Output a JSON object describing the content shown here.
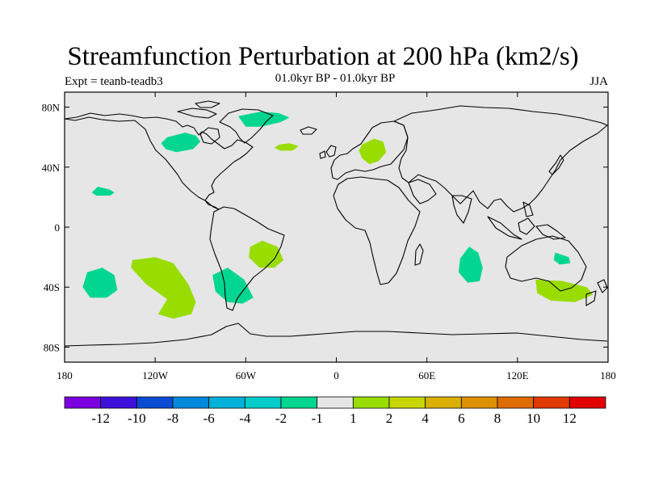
{
  "title": "Streamfunction Perturbation at 200 hPa (km2/s)",
  "left_label": "Expt = teanb-teadb3",
  "center_label": "01.0kyr BP - 01.0kyr BP",
  "right_label": "JJA",
  "map": {
    "projection": "cylindrical-equidistant",
    "lon_range": [
      -180,
      180
    ],
    "lat_range": [
      -90,
      90
    ],
    "background_color": "#e6e6e6",
    "lon_ticks": [
      {
        "value": -180,
        "label": "180"
      },
      {
        "value": -120,
        "label": "120W"
      },
      {
        "value": -60,
        "label": "60W"
      },
      {
        "value": 0,
        "label": "0"
      },
      {
        "value": 60,
        "label": "60E"
      },
      {
        "value": 120,
        "label": "120E"
      },
      {
        "value": 180,
        "label": "180"
      }
    ],
    "lat_ticks": [
      {
        "value": 80,
        "label": "80N"
      },
      {
        "value": 40,
        "label": "40N"
      },
      {
        "value": 0,
        "label": "0"
      },
      {
        "value": -40,
        "label": "40S"
      },
      {
        "value": -80,
        "label": "80S"
      }
    ],
    "anomaly_regions": [
      {
        "name": "north-pacific-small",
        "color": "#00d68f",
        "points": [
          [
            -158,
            27
          ],
          [
            -150,
            25
          ],
          [
            -147,
            23
          ],
          [
            -150,
            21
          ],
          [
            -159,
            21
          ],
          [
            -162,
            23
          ]
        ]
      },
      {
        "name": "canada",
        "color": "#00d68f",
        "points": [
          [
            -112,
            60
          ],
          [
            -100,
            63
          ],
          [
            -93,
            61
          ],
          [
            -90,
            57
          ],
          [
            -95,
            52
          ],
          [
            -106,
            50
          ],
          [
            -113,
            52
          ],
          [
            -116,
            56
          ]
        ]
      },
      {
        "name": "greenland",
        "color": "#00d68f",
        "points": [
          [
            -65,
            74
          ],
          [
            -50,
            77
          ],
          [
            -38,
            76
          ],
          [
            -31,
            73
          ],
          [
            -37,
            70
          ],
          [
            -50,
            67
          ],
          [
            -60,
            67
          ]
        ]
      },
      {
        "name": "north-atlantic",
        "color": "#99dc00",
        "points": [
          [
            -38,
            55
          ],
          [
            -31,
            56
          ],
          [
            -25,
            54
          ],
          [
            -29,
            51
          ],
          [
            -37,
            51
          ],
          [
            -41,
            53
          ]
        ]
      },
      {
        "name": "eastern-europe",
        "color": "#99dc00",
        "points": [
          [
            17,
            55
          ],
          [
            25,
            59
          ],
          [
            31,
            57
          ],
          [
            33,
            50
          ],
          [
            28,
            44
          ],
          [
            22,
            42
          ],
          [
            17,
            46
          ],
          [
            15,
            51
          ]
        ]
      },
      {
        "name": "south-pacific-west",
        "color": "#00d68f",
        "points": [
          [
            -165,
            -30
          ],
          [
            -155,
            -27
          ],
          [
            -147,
            -32
          ],
          [
            -145,
            -42
          ],
          [
            -152,
            -47
          ],
          [
            -163,
            -47
          ],
          [
            -168,
            -40
          ]
        ]
      },
      {
        "name": "south-pacific-band",
        "color": "#99dc00",
        "points": [
          [
            -135,
            -22
          ],
          [
            -120,
            -20
          ],
          [
            -108,
            -24
          ],
          [
            -98,
            -38
          ],
          [
            -93,
            -50
          ],
          [
            -96,
            -58
          ],
          [
            -108,
            -61
          ],
          [
            -118,
            -58
          ],
          [
            -112,
            -48
          ],
          [
            -126,
            -38
          ],
          [
            -136,
            -27
          ]
        ]
      },
      {
        "name": "south-america",
        "color": "#00d68f",
        "points": [
          [
            -82,
            -32
          ],
          [
            -72,
            -27
          ],
          [
            -61,
            -35
          ],
          [
            -55,
            -47
          ],
          [
            -62,
            -51
          ],
          [
            -72,
            -50
          ],
          [
            -80,
            -43
          ]
        ]
      },
      {
        "name": "south-atlantic",
        "color": "#99dc00",
        "points": [
          [
            -57,
            -13
          ],
          [
            -49,
            -9
          ],
          [
            -39,
            -13
          ],
          [
            -35,
            -22
          ],
          [
            -41,
            -27
          ],
          [
            -51,
            -27
          ],
          [
            -58,
            -20
          ]
        ]
      },
      {
        "name": "indian-ocean",
        "color": "#00d68f",
        "points": [
          [
            88,
            -13
          ],
          [
            94,
            -17
          ],
          [
            97,
            -27
          ],
          [
            95,
            -36
          ],
          [
            87,
            -37
          ],
          [
            81,
            -30
          ],
          [
            82,
            -21
          ]
        ]
      },
      {
        "name": "australia",
        "color": "#00d68f",
        "points": [
          [
            145,
            -17
          ],
          [
            154,
            -20
          ],
          [
            155,
            -24
          ],
          [
            148,
            -25
          ],
          [
            144,
            -22
          ]
        ]
      },
      {
        "name": "tasmania-region",
        "color": "#99dc00",
        "points": [
          [
            132,
            -35
          ],
          [
            150,
            -36
          ],
          [
            166,
            -40
          ],
          [
            170,
            -45
          ],
          [
            158,
            -50
          ],
          [
            142,
            -49
          ],
          [
            133,
            -44
          ]
        ]
      }
    ]
  },
  "colorbar": {
    "colors": [
      "#7a00e0",
      "#3e12dc",
      "#0a4bd4",
      "#0088dd",
      "#00b2d8",
      "#00cccc",
      "#00d68f",
      "#e6e6e6",
      "#99dc00",
      "#c7d600",
      "#d9b000",
      "#de9100",
      "#e06b00",
      "#e03a00",
      "#e00000"
    ],
    "labels": [
      "-12",
      "-10",
      "-8",
      "-6",
      "-4",
      "-2",
      "-1",
      "1",
      "2",
      "4",
      "6",
      "8",
      "10",
      "12"
    ]
  }
}
